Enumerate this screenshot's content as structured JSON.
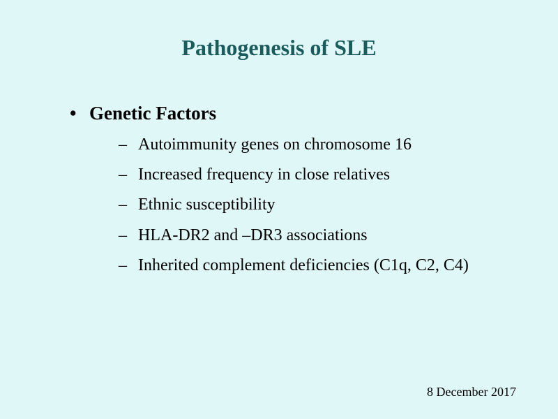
{
  "slide": {
    "background_color": "#e0f7f7",
    "title": {
      "text": "Pathogenesis of SLE",
      "color": "#1a5c5c",
      "fontsize": 32,
      "font_weight": "bold"
    },
    "main_bullet": {
      "text": "Genetic Factors",
      "fontsize": 27,
      "font_weight": "bold",
      "color": "#000000",
      "marker": "•"
    },
    "sub_bullets": {
      "marker": "–",
      "fontsize": 24,
      "color": "#000000",
      "items": [
        "Autoimmunity genes on chromosome 16",
        "Increased frequency in close relatives",
        "Ethnic susceptibility",
        "HLA-DR2 and –DR3 associations",
        "Inherited complement deficiencies (C1q, C2, C4)"
      ]
    },
    "footer_date": {
      "text": "8 December 2017",
      "fontsize": 18,
      "color": "#000000"
    }
  }
}
